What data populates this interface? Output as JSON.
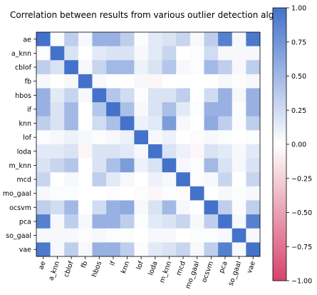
{
  "chart_data": {
    "type": "heatmap",
    "title": "Correlation between results from various outlier detection alg",
    "labels": [
      "ae",
      "a_knn",
      "cblof",
      "fb",
      "hbos",
      "if",
      "knn",
      "lof",
      "loda",
      "m_knn",
      "mcd",
      "mo_gaal",
      "ocsvm",
      "pca",
      "so_gaal",
      "vae"
    ],
    "values": [
      [
        1.0,
        0.02,
        0.35,
        0.05,
        0.55,
        0.55,
        0.35,
        0.02,
        0.15,
        0.2,
        0.3,
        0.05,
        0.35,
        0.9,
        0.05,
        0.95
      ],
      [
        0.02,
        1.0,
        0.2,
        0.0,
        0.15,
        0.2,
        0.2,
        0.05,
        0.15,
        0.3,
        0.0,
        0.02,
        0.25,
        0.05,
        0.05,
        0.05
      ],
      [
        0.35,
        0.2,
        1.0,
        0.05,
        0.3,
        0.5,
        0.5,
        0.1,
        0.2,
        0.4,
        0.05,
        0.02,
        0.5,
        0.35,
        0.05,
        0.35
      ],
      [
        0.05,
        0.0,
        0.05,
        1.0,
        0.05,
        0.0,
        0.0,
        0.05,
        -0.05,
        0.0,
        0.0,
        0.0,
        0.0,
        0.05,
        -0.02,
        0.05
      ],
      [
        0.55,
        0.15,
        0.3,
        0.05,
        1.0,
        0.4,
        0.25,
        0.02,
        0.2,
        0.2,
        0.35,
        0.0,
        0.25,
        0.55,
        0.05,
        0.55
      ],
      [
        0.55,
        0.2,
        0.5,
        0.0,
        0.4,
        1.0,
        0.45,
        0.05,
        0.2,
        0.45,
        0.15,
        0.02,
        0.55,
        0.55,
        0.02,
        0.55
      ],
      [
        0.35,
        0.2,
        0.5,
        0.0,
        0.25,
        0.45,
        1.0,
        0.1,
        0.15,
        0.7,
        0.05,
        0.0,
        0.6,
        0.35,
        0.02,
        0.35
      ],
      [
        0.02,
        0.05,
        0.1,
        0.05,
        0.02,
        0.05,
        0.1,
        1.0,
        0.05,
        0.1,
        0.0,
        -0.02,
        0.05,
        0.02,
        0.0,
        0.02
      ],
      [
        0.15,
        0.15,
        0.2,
        -0.05,
        0.2,
        0.2,
        0.15,
        0.05,
        1.0,
        0.2,
        0.1,
        -0.05,
        0.2,
        0.15,
        0.05,
        0.15
      ],
      [
        0.2,
        0.3,
        0.4,
        0.0,
        0.2,
        0.45,
        0.7,
        0.1,
        0.2,
        1.0,
        0.05,
        0.02,
        0.5,
        0.2,
        0.05,
        0.2
      ],
      [
        0.3,
        0.0,
        0.05,
        0.0,
        0.35,
        0.15,
        0.05,
        0.0,
        0.1,
        0.05,
        1.0,
        -0.02,
        0.05,
        0.3,
        0.0,
        0.3
      ],
      [
        0.05,
        0.02,
        0.02,
        0.0,
        0.0,
        0.02,
        0.0,
        -0.02,
        -0.05,
        0.02,
        -0.02,
        1.0,
        0.0,
        0.05,
        0.02,
        0.05
      ],
      [
        0.35,
        0.25,
        0.5,
        0.0,
        0.25,
        0.55,
        0.6,
        0.05,
        0.2,
        0.5,
        0.05,
        0.0,
        1.0,
        0.35,
        0.02,
        0.35
      ],
      [
        0.9,
        0.05,
        0.35,
        0.05,
        0.55,
        0.55,
        0.35,
        0.02,
        0.15,
        0.2,
        0.3,
        0.05,
        0.35,
        1.0,
        0.05,
        0.9
      ],
      [
        0.05,
        0.05,
        0.05,
        -0.02,
        0.05,
        0.02,
        0.02,
        0.0,
        0.05,
        0.05,
        0.0,
        0.02,
        0.02,
        0.05,
        1.0,
        0.05
      ],
      [
        0.95,
        0.05,
        0.35,
        0.05,
        0.55,
        0.55,
        0.35,
        0.02,
        0.15,
        0.2,
        0.3,
        0.05,
        0.35,
        0.9,
        0.05,
        1.0
      ]
    ],
    "vmin": -1.0,
    "vmax": 1.0,
    "colormap": {
      "low": "#d6436a",
      "mid": "#ffffff",
      "high": "#4472ca"
    },
    "colorbar_ticks": [
      1.0,
      0.75,
      0.5,
      0.25,
      0.0,
      -0.25,
      -0.5,
      -0.75,
      -1.0
    ],
    "colorbar_tick_labels": [
      "1.00",
      "0.75",
      "0.50",
      "0.25",
      "0.00",
      "−0.25",
      "−0.50",
      "−0.75",
      "−1.00"
    ],
    "grid": false,
    "legend": "colorbar-right"
  }
}
